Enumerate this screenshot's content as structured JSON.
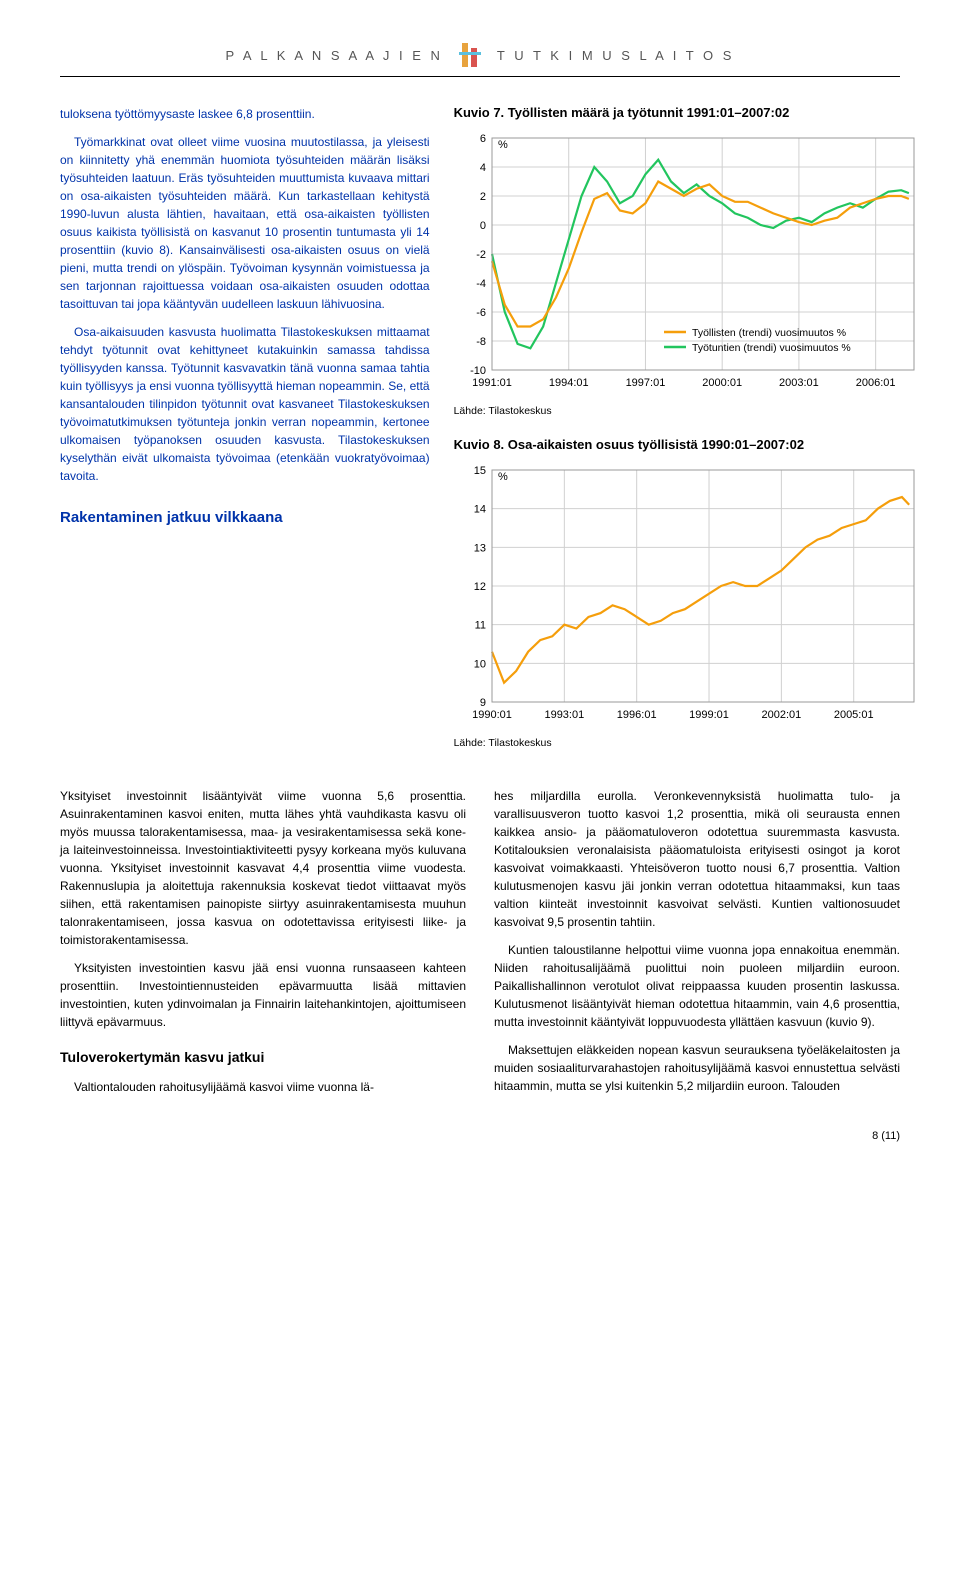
{
  "header": {
    "left": "P A L K A N S A A J I E N",
    "right": "T U T K I M U S L A I T O S"
  },
  "body_left": {
    "p1": "tuloksena työttömyysaste laskee 6,8 prosenttiin.",
    "p2": "Työmarkkinat ovat olleet viime vuosina muutostilassa, ja yleisesti on kiinnitetty yhä enemmän huomiota työsuhteiden määrän lisäksi työsuhteiden laatuun. Eräs työsuhteiden muuttumista kuvaava mittari on osa-aikaisten työsuhteiden määrä. Kun tarkastellaan kehitystä 1990-luvun alusta lähtien, havaitaan, että osa-aikaisten työllisten osuus kaikista työllisistä on kasvanut 10 prosentin tuntumasta yli 14 prosenttiin (kuvio 8). Kansainvälisesti osa-aikaisten osuus on vielä pieni, mutta trendi on ylöspäin. Työvoiman kysynnän voimistuessa ja sen tarjonnan rajoittuessa voidaan osa-aikaisten osuuden odottaa tasoittuvan tai jopa kääntyvän uudelleen laskuun lähivuosina.",
    "p3": "Osa-aikaisuuden kasvusta huolimatta Tilastokeskuksen mittaamat tehdyt työtunnit ovat kehittyneet kutakuinkin samassa tahdissa työllisyyden kanssa. Työtunnit kasvavatkin tänä vuonna samaa tahtia kuin työllisyys ja ensi vuonna työllisyyttä hieman nopeammin. Se, että kansantalouden tilinpidon työtunnit ovat kasvaneet Tilastokeskuksen työvoimatutkimuksen työtunteja jonkin verran nopeammin, kertonee ulkomaisen työpanoksen osuuden kasvusta. Tilastokeskuksen kyselythän eivät ulkomaista työvoimaa (etenkään vuokratyövoimaa) tavoita.",
    "head1": "Rakentaminen jatkuu vilkkaana"
  },
  "chart7": {
    "title": "Kuvio 7. Työllisten määrä ja työtunnit 1991:01–2007:02",
    "type": "line",
    "ylabel": "%",
    "xlim": [
      1991,
      2007.5
    ],
    "ylim": [
      -10,
      6
    ],
    "ytick_step": 2,
    "xticks": [
      "1991:01",
      "1994:01",
      "1997:01",
      "2000:01",
      "2003:01",
      "2006:01"
    ],
    "source": "Lähde: Tilastokeskus",
    "legend": [
      {
        "label": "Työllisten (trendi) vuosimuutos %",
        "color": "#f59e0b"
      },
      {
        "label": "Työtuntien (trendi) vuosimuutos %",
        "color": "#22c55e"
      }
    ],
    "series1_color": "#f59e0b",
    "series2_color": "#22c55e",
    "grid_color": "#d0d0d0",
    "background_color": "#ffffff",
    "series1": [
      [
        1991.0,
        -2.5
      ],
      [
        1991.5,
        -5.5
      ],
      [
        1992.0,
        -7.0
      ],
      [
        1992.5,
        -7.0
      ],
      [
        1993.0,
        -6.5
      ],
      [
        1993.5,
        -5.0
      ],
      [
        1994.0,
        -3.0
      ],
      [
        1994.5,
        -0.5
      ],
      [
        1995.0,
        1.8
      ],
      [
        1995.5,
        2.2
      ],
      [
        1996.0,
        1.0
      ],
      [
        1996.5,
        0.8
      ],
      [
        1997.0,
        1.5
      ],
      [
        1997.5,
        3.0
      ],
      [
        1998.0,
        2.5
      ],
      [
        1998.5,
        2.0
      ],
      [
        1999.0,
        2.5
      ],
      [
        1999.5,
        2.8
      ],
      [
        2000.0,
        2.0
      ],
      [
        2000.5,
        1.6
      ],
      [
        2001.0,
        1.6
      ],
      [
        2001.5,
        1.2
      ],
      [
        2002.0,
        0.8
      ],
      [
        2002.5,
        0.5
      ],
      [
        2003.0,
        0.2
      ],
      [
        2003.5,
        0.0
      ],
      [
        2004.0,
        0.3
      ],
      [
        2004.5,
        0.5
      ],
      [
        2005.0,
        1.2
      ],
      [
        2005.5,
        1.5
      ],
      [
        2006.0,
        1.8
      ],
      [
        2006.5,
        2.0
      ],
      [
        2007.0,
        2.0
      ],
      [
        2007.3,
        1.8
      ]
    ],
    "series2": [
      [
        1991.0,
        -2.0
      ],
      [
        1991.5,
        -6.0
      ],
      [
        1992.0,
        -8.2
      ],
      [
        1992.5,
        -8.5
      ],
      [
        1993.0,
        -7.0
      ],
      [
        1993.5,
        -4.0
      ],
      [
        1994.0,
        -1.0
      ],
      [
        1994.5,
        2.0
      ],
      [
        1995.0,
        4.0
      ],
      [
        1995.5,
        3.0
      ],
      [
        1996.0,
        1.5
      ],
      [
        1996.5,
        2.0
      ],
      [
        1997.0,
        3.5
      ],
      [
        1997.5,
        4.5
      ],
      [
        1998.0,
        3.0
      ],
      [
        1998.5,
        2.2
      ],
      [
        1999.0,
        2.8
      ],
      [
        1999.5,
        2.0
      ],
      [
        2000.0,
        1.5
      ],
      [
        2000.5,
        0.8
      ],
      [
        2001.0,
        0.5
      ],
      [
        2001.5,
        0.0
      ],
      [
        2002.0,
        -0.2
      ],
      [
        2002.5,
        0.3
      ],
      [
        2003.0,
        0.5
      ],
      [
        2003.5,
        0.2
      ],
      [
        2004.0,
        0.8
      ],
      [
        2004.5,
        1.2
      ],
      [
        2005.0,
        1.5
      ],
      [
        2005.5,
        1.2
      ],
      [
        2006.0,
        1.8
      ],
      [
        2006.5,
        2.3
      ],
      [
        2007.0,
        2.4
      ],
      [
        2007.3,
        2.2
      ]
    ]
  },
  "chart8": {
    "title": "Kuvio 8. Osa-aikaisten osuus työllisistä 1990:01–2007:02",
    "type": "line",
    "ylabel": "%",
    "xlim": [
      1990,
      2007.5
    ],
    "ylim": [
      9,
      15
    ],
    "ytick_step": 1,
    "xticks": [
      "1990:01",
      "1993:01",
      "1996:01",
      "1999:01",
      "2002:01",
      "2005:01"
    ],
    "source": "Lähde: Tilastokeskus",
    "series_color": "#f59e0b",
    "grid_color": "#d0d0d0",
    "background_color": "#ffffff",
    "series": [
      [
        1990.0,
        10.3
      ],
      [
        1990.5,
        9.5
      ],
      [
        1991.0,
        9.8
      ],
      [
        1991.5,
        10.3
      ],
      [
        1992.0,
        10.6
      ],
      [
        1992.5,
        10.7
      ],
      [
        1993.0,
        11.0
      ],
      [
        1993.5,
        10.9
      ],
      [
        1994.0,
        11.2
      ],
      [
        1994.5,
        11.3
      ],
      [
        1995.0,
        11.5
      ],
      [
        1995.5,
        11.4
      ],
      [
        1996.0,
        11.2
      ],
      [
        1996.5,
        11.0
      ],
      [
        1997.0,
        11.1
      ],
      [
        1997.5,
        11.3
      ],
      [
        1998.0,
        11.4
      ],
      [
        1998.5,
        11.6
      ],
      [
        1999.0,
        11.8
      ],
      [
        1999.5,
        12.0
      ],
      [
        2000.0,
        12.1
      ],
      [
        2000.5,
        12.0
      ],
      [
        2001.0,
        12.0
      ],
      [
        2001.5,
        12.2
      ],
      [
        2002.0,
        12.4
      ],
      [
        2002.5,
        12.7
      ],
      [
        2003.0,
        13.0
      ],
      [
        2003.5,
        13.2
      ],
      [
        2004.0,
        13.3
      ],
      [
        2004.5,
        13.5
      ],
      [
        2005.0,
        13.6
      ],
      [
        2005.5,
        13.7
      ],
      [
        2006.0,
        14.0
      ],
      [
        2006.5,
        14.2
      ],
      [
        2007.0,
        14.3
      ],
      [
        2007.3,
        14.1
      ]
    ]
  },
  "bottom": {
    "left": {
      "p1": "Yksityiset investoinnit lisääntyivät viime vuonna 5,6 prosenttia. Asuinrakentaminen kasvoi eniten, mutta lähes yhtä vauhdikasta kasvu oli myös muussa talorakentamisessa, maa- ja vesirakentamisessa sekä kone- ja laiteinvestoinneissa. Investointiaktiviteetti pysyy korkeana myös kuluvana vuonna. Yksityiset investoinnit kasvavat 4,4 prosenttia viime vuodesta. Rakennuslupia ja aloitettuja rakennuksia koskevat tiedot viittaavat myös siihen, että rakentamisen painopiste siirtyy asuinrakentamisesta muuhun talonrakentamiseen, jossa kasvua on odotettavissa erityisesti liike- ja toimistorakentamisessa.",
      "p2": "Yksityisten investointien kasvu jää ensi vuonna runsaaseen kahteen prosenttiin. Investointiennusteiden epävarmuutta lisää mittavien investointien, kuten ydinvoimalan ja Finnairin laitehankintojen, ajoittumiseen liittyvä epävarmuus.",
      "h1": "Tuloverokertymän kasvu jatkui",
      "p3": "Valtiontalouden rahoitusylijäämä kasvoi viime vuonna lä-"
    },
    "right": {
      "p1": "hes miljardilla eurolla. Veronkevennyksistä huolimatta tulo- ja varallisuusveron tuotto kasvoi 1,2 prosenttia, mikä oli seurausta ennen kaikkea ansio- ja pääomatuloveron odotettua suuremmasta kasvusta. Kotitalouksien veronalaisista pääomatuloista erityisesti osingot ja korot kasvoivat voimakkaasti. Yhteisöveron tuotto nousi 6,7 prosenttia. Valtion kulutusmenojen kasvu jäi jonkin verran odotettua hitaammaksi, kun taas valtion kiinteät investoinnit kasvoivat selvästi. Kuntien valtionosuudet kasvoivat 9,5 prosentin tahtiin.",
      "p2": "Kuntien taloustilanne helpottui viime vuonna jopa ennakoitua enemmän. Niiden rahoitusalijäämä puolittui noin puoleen miljardiin euroon. Paikallishallinnon verotulot olivat reippaassa kuuden prosentin laskussa. Kulutusmenot lisääntyivät hieman odotettua hitaammin, vain 4,6 prosenttia, mutta investoinnit kääntyivät loppuvuodesta yllättäen kasvuun (kuvio 9).",
      "p3": "Maksettujen eläkkeiden nopean kasvun seurauksena työeläkelaitosten ja muiden sosiaaliturvarahastojen rahoitusylijäämä kasvoi ennustettua selvästi hitaammin, mutta se ylsi kuitenkin 5,2 miljardiin euroon. Talouden"
    }
  },
  "pageno": "8 (11)"
}
